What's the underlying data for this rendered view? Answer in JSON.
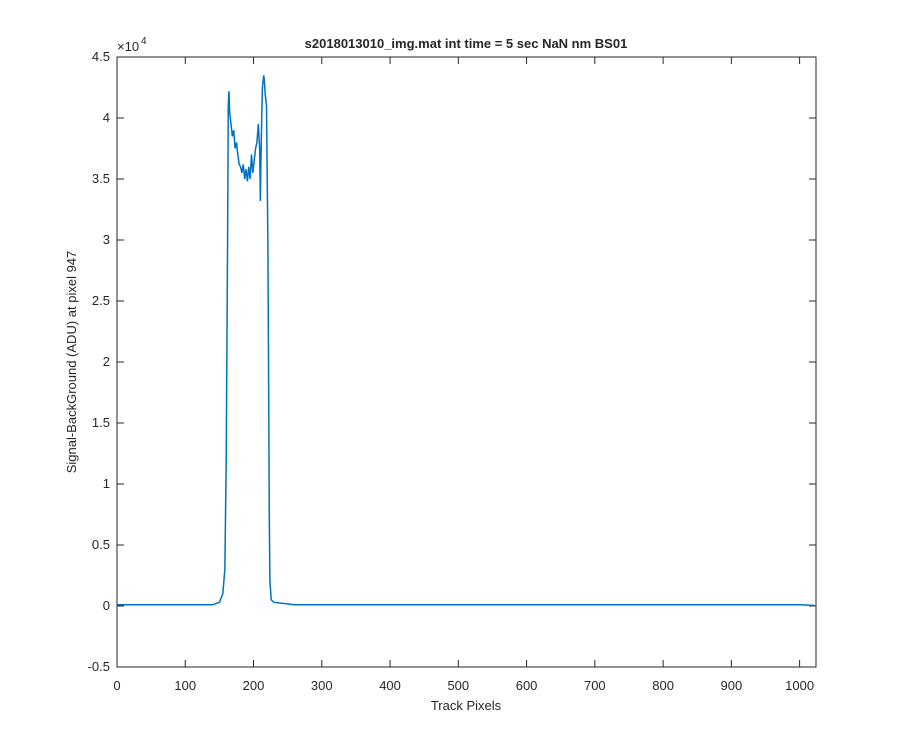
{
  "chart_data": {
    "type": "line",
    "title": "s2018013010_img.mat int time = 5 sec  NaN nm BS01",
    "x_label": "Track Pixels",
    "y_label": "Signal-BackGround (ADU) at pixel 947",
    "y_multiplier_base": "×10",
    "y_multiplier_exponent": "4",
    "x": [
      0,
      20,
      50,
      100,
      140,
      150,
      155,
      158,
      160,
      162,
      163,
      164,
      165,
      167,
      169,
      171,
      173,
      175,
      177,
      179,
      181,
      183,
      185,
      187,
      189,
      191,
      193,
      195,
      197,
      199,
      201,
      203,
      205,
      207,
      209,
      210,
      211,
      212,
      213,
      215,
      216,
      217,
      219,
      221,
      222,
      223,
      224,
      226,
      230,
      260,
      300,
      400,
      500,
      600,
      700,
      800,
      900,
      1000,
      1020,
      1024
    ],
    "series": [
      {
        "color": "#0072bd",
        "values": [
          0.01,
          0.01,
          0.01,
          0.01,
          0.01,
          0.03,
          0.1,
          0.3,
          1.2,
          3.0,
          4.1,
          4.22,
          4.05,
          3.95,
          3.85,
          3.9,
          3.75,
          3.8,
          3.7,
          3.62,
          3.6,
          3.55,
          3.62,
          3.5,
          3.58,
          3.48,
          3.6,
          3.5,
          3.7,
          3.55,
          3.65,
          3.75,
          3.8,
          3.95,
          3.75,
          3.32,
          3.7,
          4.0,
          4.25,
          4.35,
          4.3,
          4.2,
          4.1,
          3.0,
          2.0,
          0.8,
          0.2,
          0.05,
          0.03,
          0.01,
          0.01,
          0.01,
          0.01,
          0.01,
          0.01,
          0.01,
          0.01,
          0.01,
          0.005,
          0.0
        ]
      }
    ],
    "xlim": [
      0,
      1024
    ],
    "ylim": [
      -0.5,
      4.5
    ],
    "xticks": [
      0,
      100,
      200,
      300,
      400,
      500,
      600,
      700,
      800,
      900,
      1000
    ],
    "yticks": [
      -0.5,
      0,
      0.5,
      1,
      1.5,
      2,
      2.5,
      3,
      3.5,
      4,
      4.5
    ]
  }
}
